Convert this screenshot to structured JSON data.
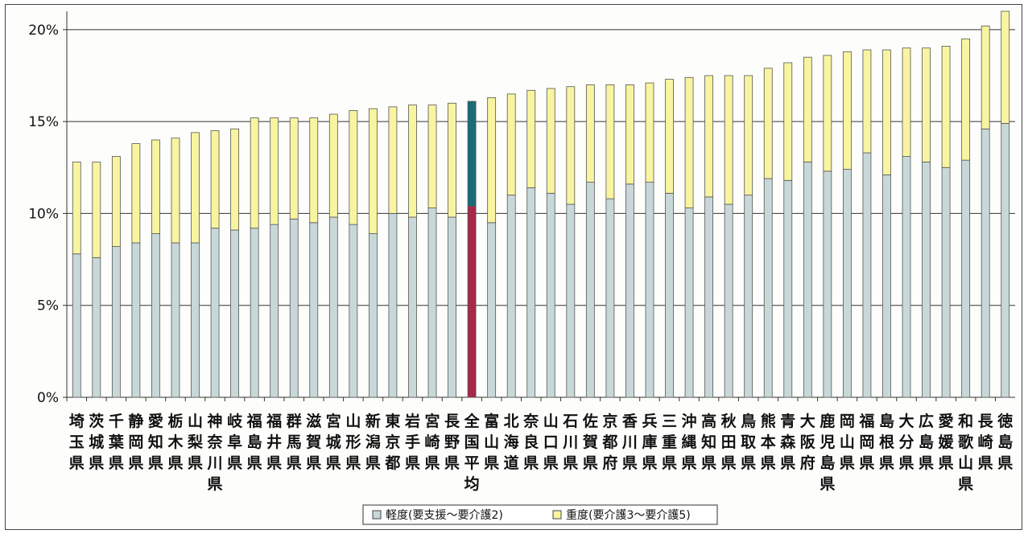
{
  "chart_data": {
    "type": "bar",
    "stacked": true,
    "ylim": [
      0,
      21
    ],
    "yticks": [
      0,
      5,
      10,
      15,
      20
    ],
    "ytick_labels": [
      "0%",
      "5%",
      "10%",
      "15%",
      "20%"
    ],
    "grid": true,
    "legend_position": "bottom",
    "categories": [
      "埼玉県",
      "茨城県",
      "千葉県",
      "静岡県",
      "愛知県",
      "栃木県",
      "山梨県",
      "神奈川県",
      "岐阜県",
      "福島県",
      "福井県",
      "群馬県",
      "滋賀県",
      "宮城県",
      "山形県",
      "新潟県",
      "東京都",
      "岩手県",
      "宮崎県",
      "長野県",
      "全国平均",
      "富山県",
      "北海道",
      "奈良県",
      "山口県",
      "石川県",
      "佐賀県",
      "京都府",
      "香川県",
      "兵庫県",
      "三重県",
      "沖縄県",
      "高知県",
      "秋田県",
      "鳥取県",
      "熊本県",
      "青森県",
      "大阪府",
      "鹿児島県",
      "岡山県",
      "福岡県",
      "島根県",
      "大分県",
      "広島県",
      "愛媛県",
      "和歌山県",
      "長崎県",
      "徳島県"
    ],
    "highlight_category": "全国平均",
    "series": [
      {
        "name": "軽度(要支援～要介護2)",
        "color": "#c8d8d8",
        "highlight_color": "#a8284a",
        "values": [
          7.8,
          7.6,
          8.2,
          8.4,
          8.9,
          8.4,
          8.4,
          9.2,
          9.1,
          9.2,
          9.4,
          9.7,
          9.5,
          9.8,
          9.4,
          8.9,
          10.0,
          9.8,
          10.3,
          9.8,
          10.4,
          9.5,
          11.0,
          11.4,
          11.1,
          10.5,
          11.7,
          10.8,
          11.6,
          11.7,
          11.1,
          10.3,
          10.9,
          10.5,
          11.0,
          11.9,
          11.8,
          12.8,
          12.3,
          12.4,
          13.3,
          12.1,
          13.1,
          12.8,
          12.5,
          12.9,
          14.6,
          14.9
        ]
      },
      {
        "name": "重度(要介護3～要介護5)",
        "color": "#f8f4a0",
        "highlight_color": "#1a6c78",
        "values": [
          5.0,
          5.2,
          4.9,
          5.4,
          5.1,
          5.7,
          6.0,
          5.3,
          5.5,
          6.0,
          5.8,
          5.5,
          5.7,
          5.6,
          6.2,
          6.8,
          5.8,
          6.1,
          5.6,
          6.2,
          5.7,
          6.8,
          5.5,
          5.3,
          5.7,
          6.4,
          5.3,
          6.2,
          5.4,
          5.4,
          6.2,
          7.1,
          6.6,
          7.0,
          6.5,
          6.0,
          6.4,
          5.7,
          6.3,
          6.4,
          5.6,
          6.8,
          5.9,
          6.2,
          6.6,
          6.6,
          5.6,
          6.1
        ]
      }
    ]
  }
}
